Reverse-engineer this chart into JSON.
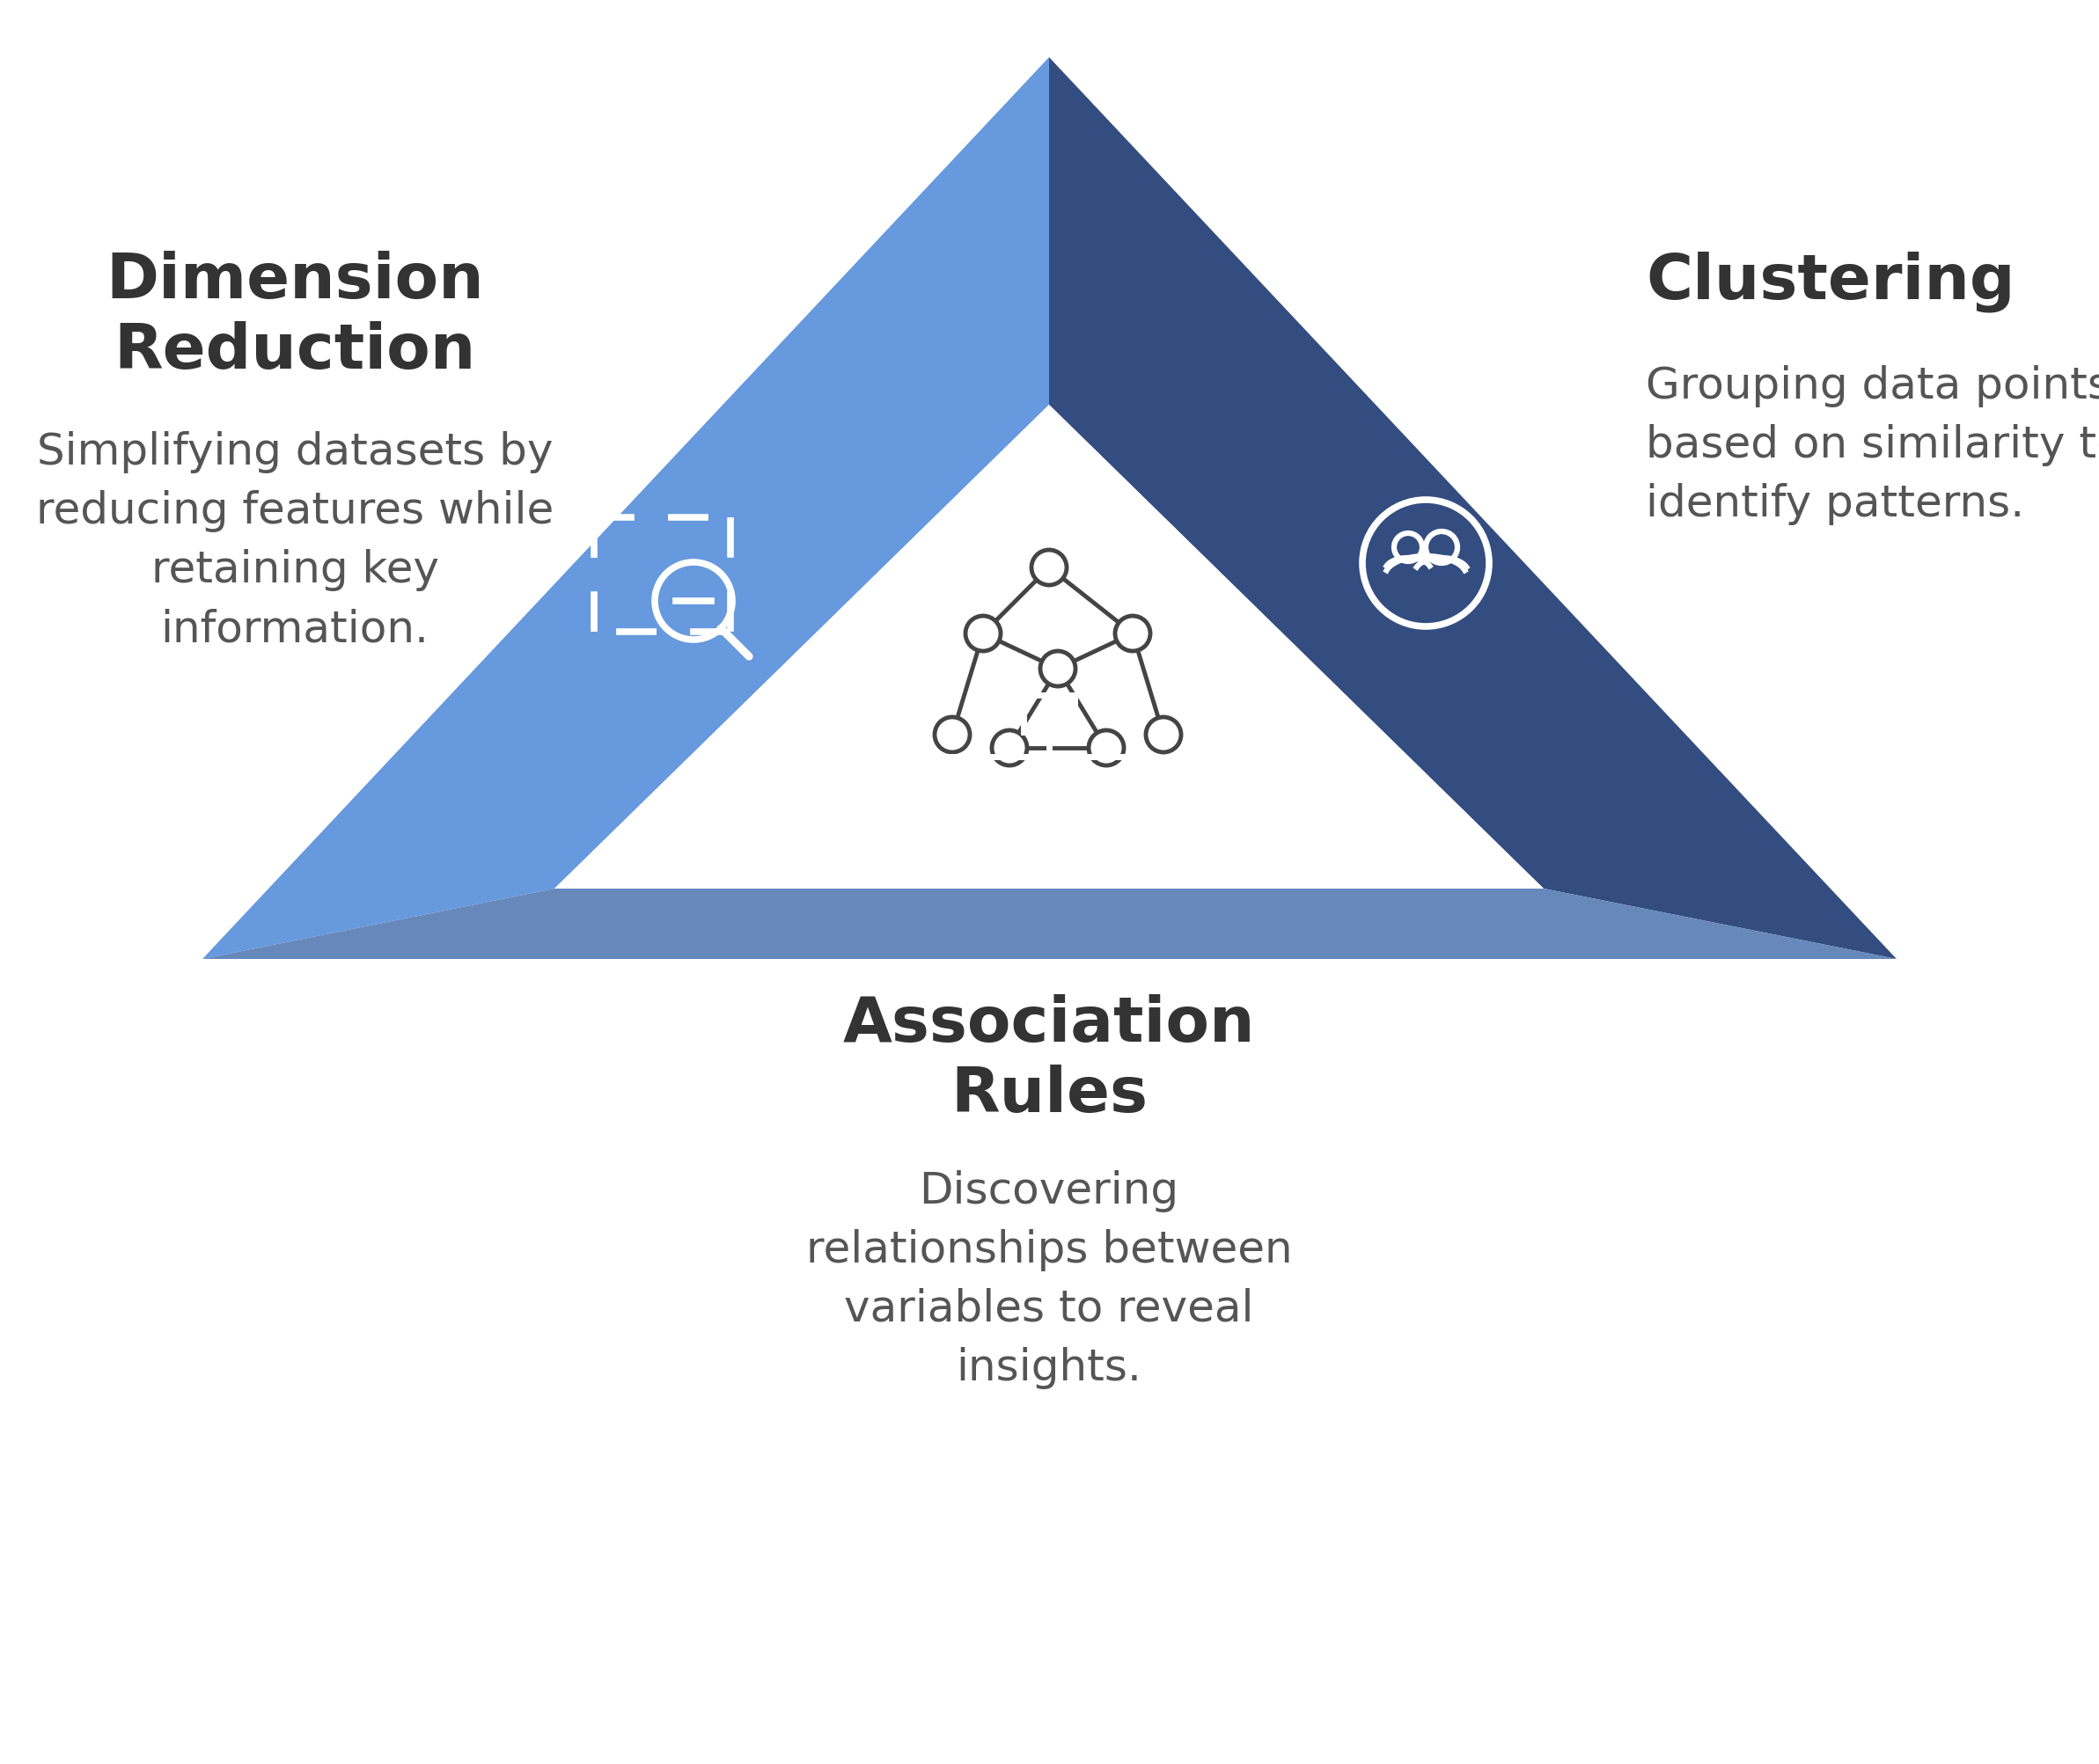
{
  "bg_color": "#ffffff",
  "color_left": "#6699dd",
  "color_right": "#334d80",
  "color_bottom": "#6688bb",
  "title_color": "#333333",
  "desc_color": "#555555",
  "icon_white": "#ffffff",
  "icon_dark": "#444444",
  "title_dim": "Dimension\nReduction",
  "desc_dim": "Simplifying datasets by\nreducing features while\nretaining key\ninformation.",
  "title_clust": "Clustering",
  "desc_clust": "Grouping data points\nbased on similarity to\nidentify patterns.",
  "title_assoc": "Association\nRules",
  "desc_assoc": "Discovering\nrelationships between\nvariables to reveal\ninsights.",
  "title_fontsize": 52,
  "desc_fontsize": 36
}
